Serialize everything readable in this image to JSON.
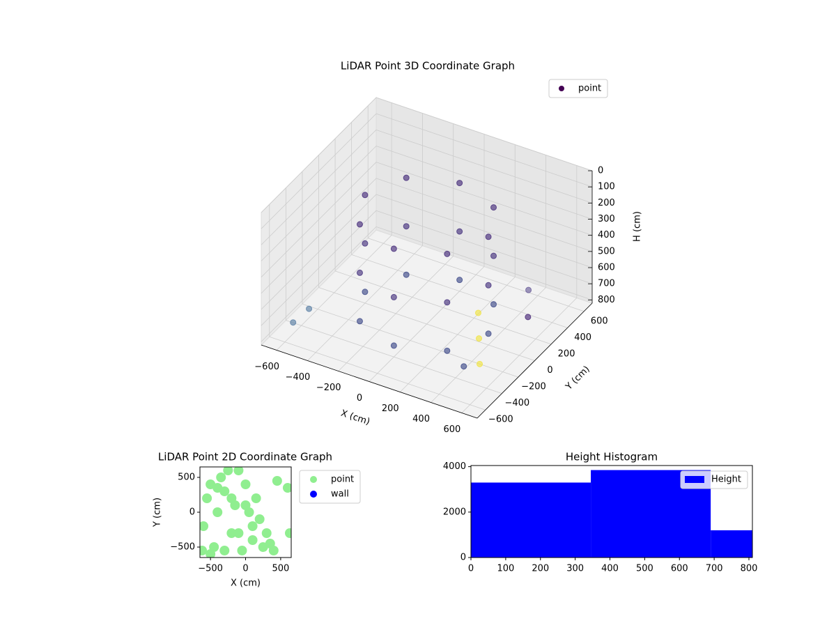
{
  "chart_data": [
    {
      "type": "scatter3d",
      "title": "LiDAR Point 3D Coordinate Graph",
      "xlabel": "X (cm)",
      "ylabel": "Y (cm)",
      "zlabel": "H (cm)",
      "xlim": [
        -700,
        700
      ],
      "ylim": [
        -700,
        700
      ],
      "zlim": [
        0,
        820
      ],
      "zinvert": true,
      "xticks": [
        {
          "value": -600,
          "label": "−600"
        },
        {
          "value": -400,
          "label": "−400"
        },
        {
          "value": -200,
          "label": "−200"
        },
        0,
        200,
        400,
        600
      ],
      "yticks": [
        {
          "value": -600,
          "label": "−600"
        },
        {
          "value": -400,
          "label": "−400"
        },
        {
          "value": -200,
          "label": "−200"
        },
        0,
        200,
        400,
        600
      ],
      "zticks": [
        0,
        100,
        200,
        300,
        400,
        500,
        600,
        700,
        800
      ],
      "legend": "upper right",
      "series": [
        {
          "name": "point",
          "color": "#440154",
          "x": [
            400,
            283,
            0,
            -283,
            -400,
            -283,
            0,
            283,
            400,
            283,
            0,
            -283,
            -400,
            -283,
            0,
            283,
            400,
            283,
            0,
            -283,
            -400,
            -283,
            0,
            283,
            500,
            550,
            -600,
            -550,
            400,
            680,
            690,
            700
          ],
          "y": [
            0,
            283,
            400,
            283,
            0,
            -283,
            -400,
            -283,
            0,
            283,
            400,
            283,
            0,
            -283,
            -400,
            -283,
            0,
            283,
            400,
            283,
            0,
            -283,
            -400,
            -283,
            300,
            200,
            -500,
            -400,
            -300,
            -650,
            -660,
            -670
          ],
          "z": [
            150,
            150,
            150,
            150,
            150,
            150,
            150,
            150,
            450,
            450,
            450,
            450,
            450,
            450,
            450,
            450,
            750,
            750,
            750,
            750,
            750,
            750,
            750,
            750,
            600,
            700,
            750,
            700,
            800,
            200,
            350,
            500
          ],
          "colors": [
            "#472d7b",
            "#472d7b",
            "#472d7b",
            "#472d7b",
            "#472d7b",
            "#472d7b",
            "#472d7b",
            "#472d7b",
            "#46327e",
            "#46327e",
            "#46327e",
            "#46327e",
            "#46327e",
            "#46327e",
            "#46327e",
            "#46327e",
            "#3e4a89",
            "#3e4a89",
            "#3e4a89",
            "#3e4a89",
            "#3e4a89",
            "#3e4a89",
            "#3e4a89",
            "#3e4a89",
            "#6a5d9a",
            "#482878",
            "#5b7fa5",
            "#5b7fa5",
            "#3e4a89",
            "#f0e442",
            "#f0e442",
            "#f0e442"
          ]
        }
      ]
    },
    {
      "type": "scatter",
      "title": "LiDAR Point 2D Coordinate Graph",
      "xlabel": "X (cm)",
      "ylabel": "Y (cm)",
      "xlim": [
        -650,
        650
      ],
      "ylim": [
        -650,
        650
      ],
      "xticks": [
        {
          "value": -500,
          "label": "−500"
        },
        0,
        500
      ],
      "yticks": [
        {
          "value": -500,
          "label": "−500"
        },
        0,
        500
      ],
      "legend": "outside right",
      "series": [
        {
          "name": "point",
          "color": "#90ee90",
          "x": [
            -620,
            -600,
            -550,
            -500,
            -450,
            -400,
            -350,
            -300,
            -250,
            -200,
            -150,
            -100,
            -50,
            0,
            50,
            100,
            150,
            200,
            250,
            300,
            350,
            400,
            -500,
            -300,
            -100,
            100,
            -400,
            -200,
            0,
            450,
            600,
            630
          ],
          "y": [
            -550,
            -200,
            200,
            400,
            -500,
            0,
            500,
            300,
            600,
            -300,
            100,
            600,
            -550,
            400,
            0,
            -400,
            200,
            -100,
            -500,
            -300,
            -450,
            -550,
            -600,
            -550,
            -300,
            -200,
            350,
            200,
            100,
            450,
            350,
            -300
          ]
        },
        {
          "name": "wall",
          "color": "#0000ff",
          "x": [],
          "y": []
        }
      ]
    },
    {
      "type": "histogram",
      "title": "Height Histogram",
      "bins": [
        0,
        345,
        690,
        810
      ],
      "counts": [
        3300,
        3850,
        1200
      ],
      "name": "Height",
      "color": "#0000ff",
      "xlim": [
        0,
        810
      ],
      "ylim": [
        0,
        4050
      ],
      "xticks": [
        0,
        100,
        200,
        300,
        400,
        500,
        600,
        700,
        800
      ],
      "yticks": [
        0,
        2000,
        4000
      ],
      "legend": "upper right"
    }
  ]
}
